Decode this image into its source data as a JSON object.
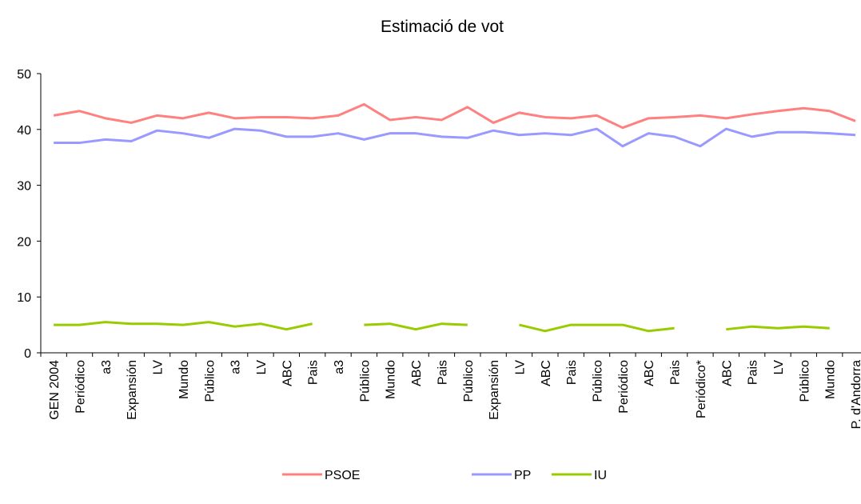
{
  "chart_data": {
    "type": "line",
    "title": "Estimació de vot",
    "categories": [
      "GEN 2004",
      "Periódico",
      "a3",
      "Expansión",
      "LV",
      "Mundo",
      "Público",
      "a3",
      "LV",
      "ABC",
      "Pais",
      "a3",
      "Público",
      "Mundo",
      "ABC",
      "Pais",
      "Público",
      "Expansión",
      "LV",
      "ABC",
      "Pais",
      "Público",
      "Periódico",
      "ABC",
      "Pais",
      "Periódico*",
      "ABC",
      "Pais",
      "LV",
      "Público",
      "Mundo",
      "P. d'Andorra"
    ],
    "series": [
      {
        "name": "PSOE",
        "color": "#ff8080",
        "values": [
          42.5,
          43.3,
          42,
          41.2,
          42.5,
          42,
          43,
          42,
          42.2,
          42.2,
          42,
          42.5,
          44.5,
          41.7,
          42.2,
          41.7,
          44,
          41.2,
          43,
          42.2,
          42,
          42.5,
          40.3,
          42,
          42.2,
          42.5,
          42,
          42.7,
          43.3,
          43.8,
          43.3,
          41.5
        ]
      },
      {
        "name": "PP",
        "color": "#9999ff",
        "values": [
          37.6,
          37.6,
          38.2,
          37.9,
          39.8,
          39.3,
          38.5,
          40.1,
          39.8,
          38.7,
          38.7,
          39.3,
          38.2,
          39.3,
          39.3,
          38.7,
          38.5,
          39.8,
          39,
          39.3,
          39,
          40.1,
          37,
          39.3,
          38.7,
          37,
          40.1,
          38.7,
          39.5,
          39.5,
          39.3,
          39
        ]
      },
      {
        "name": "IU",
        "color": "#99cc00",
        "values": [
          5,
          5,
          5.5,
          5.2,
          5.2,
          5,
          5.5,
          4.7,
          5.2,
          4.2,
          5.2,
          null,
          5,
          5.2,
          4.2,
          5.2,
          5,
          null,
          5,
          3.9,
          5,
          5,
          5,
          3.9,
          4.4,
          null,
          4.2,
          4.7,
          4.4,
          4.7,
          4.4,
          null
        ]
      }
    ],
    "ylim": [
      0,
      50
    ],
    "yticks": [
      0,
      10,
      20,
      30,
      40,
      50
    ],
    "grid": false,
    "legend": "bottom"
  }
}
